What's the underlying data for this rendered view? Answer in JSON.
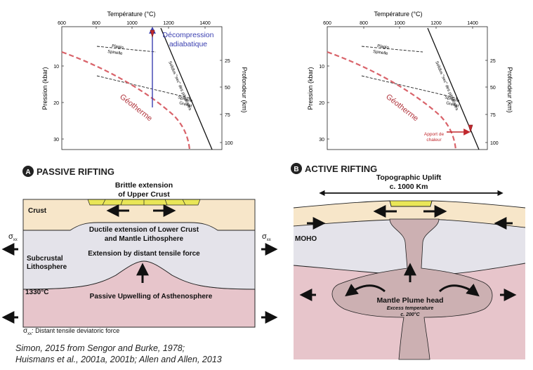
{
  "colors": {
    "geotherm": "#d9636a",
    "geotherm_label": "#b0333b",
    "decompression": "#3a3fb0",
    "heat_arrow": "#c0282d",
    "crust": "#f7e6c9",
    "lithosphere": "#e4e3ea",
    "asthenosphere": "#e7c5cb",
    "plume": "#ccb0b2",
    "graben_fill": "#e9e657"
  },
  "top_left_plot": {
    "x_axis_title": "Température (°C)",
    "x_ticks": [
      "600",
      "800",
      "1000",
      "1200",
      "1400"
    ],
    "y_left_title": "Pression (kbar)",
    "y_left_ticks": [
      "10",
      "20",
      "30"
    ],
    "y_right_title": "Profondeur (km)",
    "y_right_ticks": [
      "25",
      "50",
      "75",
      "100"
    ],
    "plagio_label": "Plagio",
    "spinelle_label": "Spinelle",
    "spinelle2_label": "Spinelle",
    "grenat_label": "Grenat",
    "solidus_label": "Solidus \"sec\" des péridotites",
    "geotherm_label": "Géotherme",
    "decompression_line1": "Décompression",
    "decompression_line2": "adiabatique"
  },
  "top_right_plot": {
    "x_axis_title": "Température (°C)",
    "x_ticks": [
      "600",
      "800",
      "1000",
      "1200",
      "1400"
    ],
    "y_left_title": "Pression (kbar)",
    "y_left_ticks": [
      "10",
      "20",
      "30"
    ],
    "y_right_title": "Profondeur (km)",
    "y_right_ticks": [
      "25",
      "50",
      "75",
      "100"
    ],
    "plagio_label": "Plagio",
    "spinelle_label": "Spinelle",
    "spinelle2_label": "Spinelle",
    "grenat_label": "Grenat",
    "solidus_label": "Solidus \"sec\" des péridotites",
    "geotherm_label": "Géotherme",
    "heat_line1": "Apport de",
    "heat_line2": "chaleur"
  },
  "passive": {
    "badge": "A",
    "title": "PASSIVE RIFTING",
    "brittle_line1": "Brittle extension",
    "brittle_line2": "of Upper Crust",
    "crust_label": "Crust",
    "ductile_line1": "Ductile extension of Lower Crust",
    "ductile_line2": "and Mantle Lithosphere",
    "extension_label": "Extension by distant tensile force",
    "subcrustal_line1": "Subcrustal",
    "subcrustal_line2": "Lithosphere",
    "sigma": "σ",
    "sigma_sub": "xx",
    "isotherm_label": "1330°C",
    "upwelling_label": "Passive Upwelling of Asthenosphere",
    "footnote_sigma": "σ",
    "footnote_sub": "xx",
    "footnote_text": ": Distant tensile deviatoric force"
  },
  "active": {
    "badge": "B",
    "title": "ACTIVE RIFTING",
    "uplift_line1": "Topographic Uplift",
    "uplift_line2": "c. 1000 Km",
    "moho_label": "MOHO",
    "plume_label": "Mantle Plume head",
    "excess_line1": "Excess temperature",
    "excess_line2": "c. 200°C"
  },
  "citation": {
    "line1": "Simon, 2015 from Sengor and Burke, 1978;",
    "line2": "Huismans et al., 2001a, 2001b; Allen and Allen, 2013"
  }
}
